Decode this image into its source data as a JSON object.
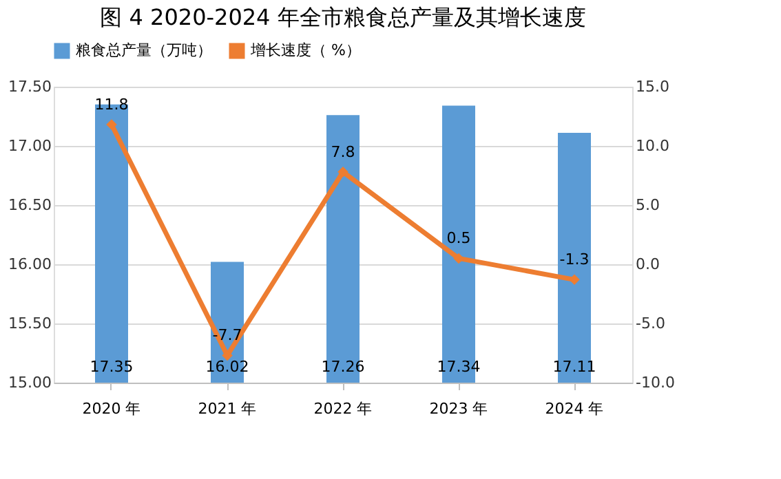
{
  "chart_data": {
    "type": "bar",
    "title": "图 4  2020-2024 年全市粮食总产量及其增长速度",
    "categories": [
      "2020 年",
      "2021 年",
      "2022 年",
      "2023 年",
      "2024 年"
    ],
    "series": [
      {
        "name": "粮食总产量（万吨）",
        "color": "#5b9bd5",
        "values": [
          17.35,
          16.02,
          17.26,
          17.34,
          17.11
        ]
      },
      {
        "name": "增长速度（ %）",
        "type": "line",
        "axis": "y2",
        "color": "#ed7d31",
        "values": [
          11.8,
          -7.7,
          7.8,
          0.5,
          -1.3
        ]
      }
    ],
    "ylim": [
      15.0,
      17.5
    ],
    "yticks": [
      {
        "value": 15.0,
        "label": "15.00"
      },
      {
        "value": 15.5,
        "label": "15.50"
      },
      {
        "value": 16.0,
        "label": "16.00"
      },
      {
        "value": 16.5,
        "label": "16.50"
      },
      {
        "value": 17.0,
        "label": "17.00"
      },
      {
        "value": 17.5,
        "label": "17.50"
      }
    ],
    "y2lim": [
      -10.0,
      15.0
    ],
    "y2ticks": [
      {
        "value": -10.0,
        "label": "-10.0"
      },
      {
        "value": -5.0,
        "label": "-5.0"
      },
      {
        "value": 0.0,
        "label": "0.0"
      },
      {
        "value": 5.0,
        "label": "5.0"
      },
      {
        "value": 10.0,
        "label": "10.0"
      },
      {
        "value": 15.0,
        "label": "15.0"
      }
    ],
    "grid": "y",
    "legend": "top",
    "marker": "diamond",
    "data_labels": true
  }
}
